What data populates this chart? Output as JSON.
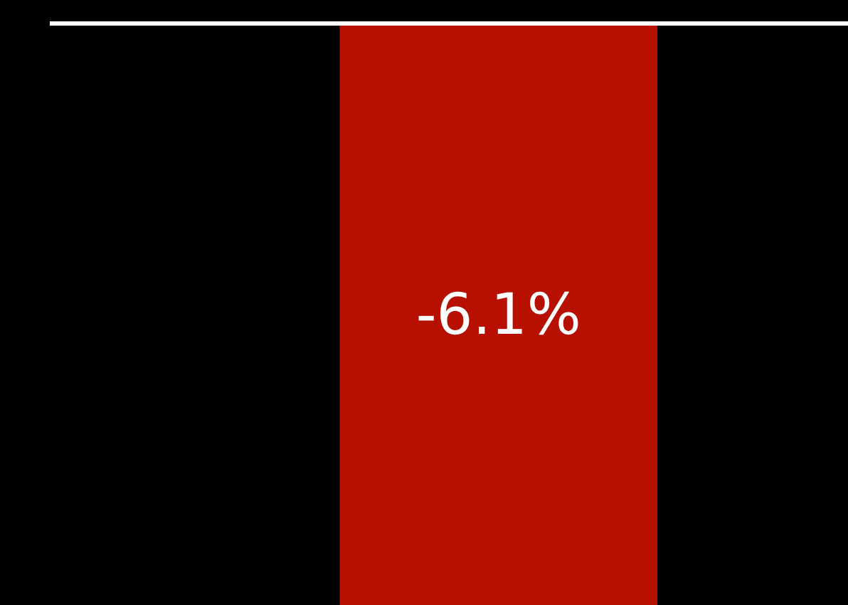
{
  "chart_data": {
    "type": "bar",
    "categories": [
      null
    ],
    "values": [
      -6.1
    ],
    "color": "#b81000",
    "value_labels": [
      "-6.1%"
    ],
    "ylim": [
      -6.1,
      0
    ],
    "grid": false
  }
}
